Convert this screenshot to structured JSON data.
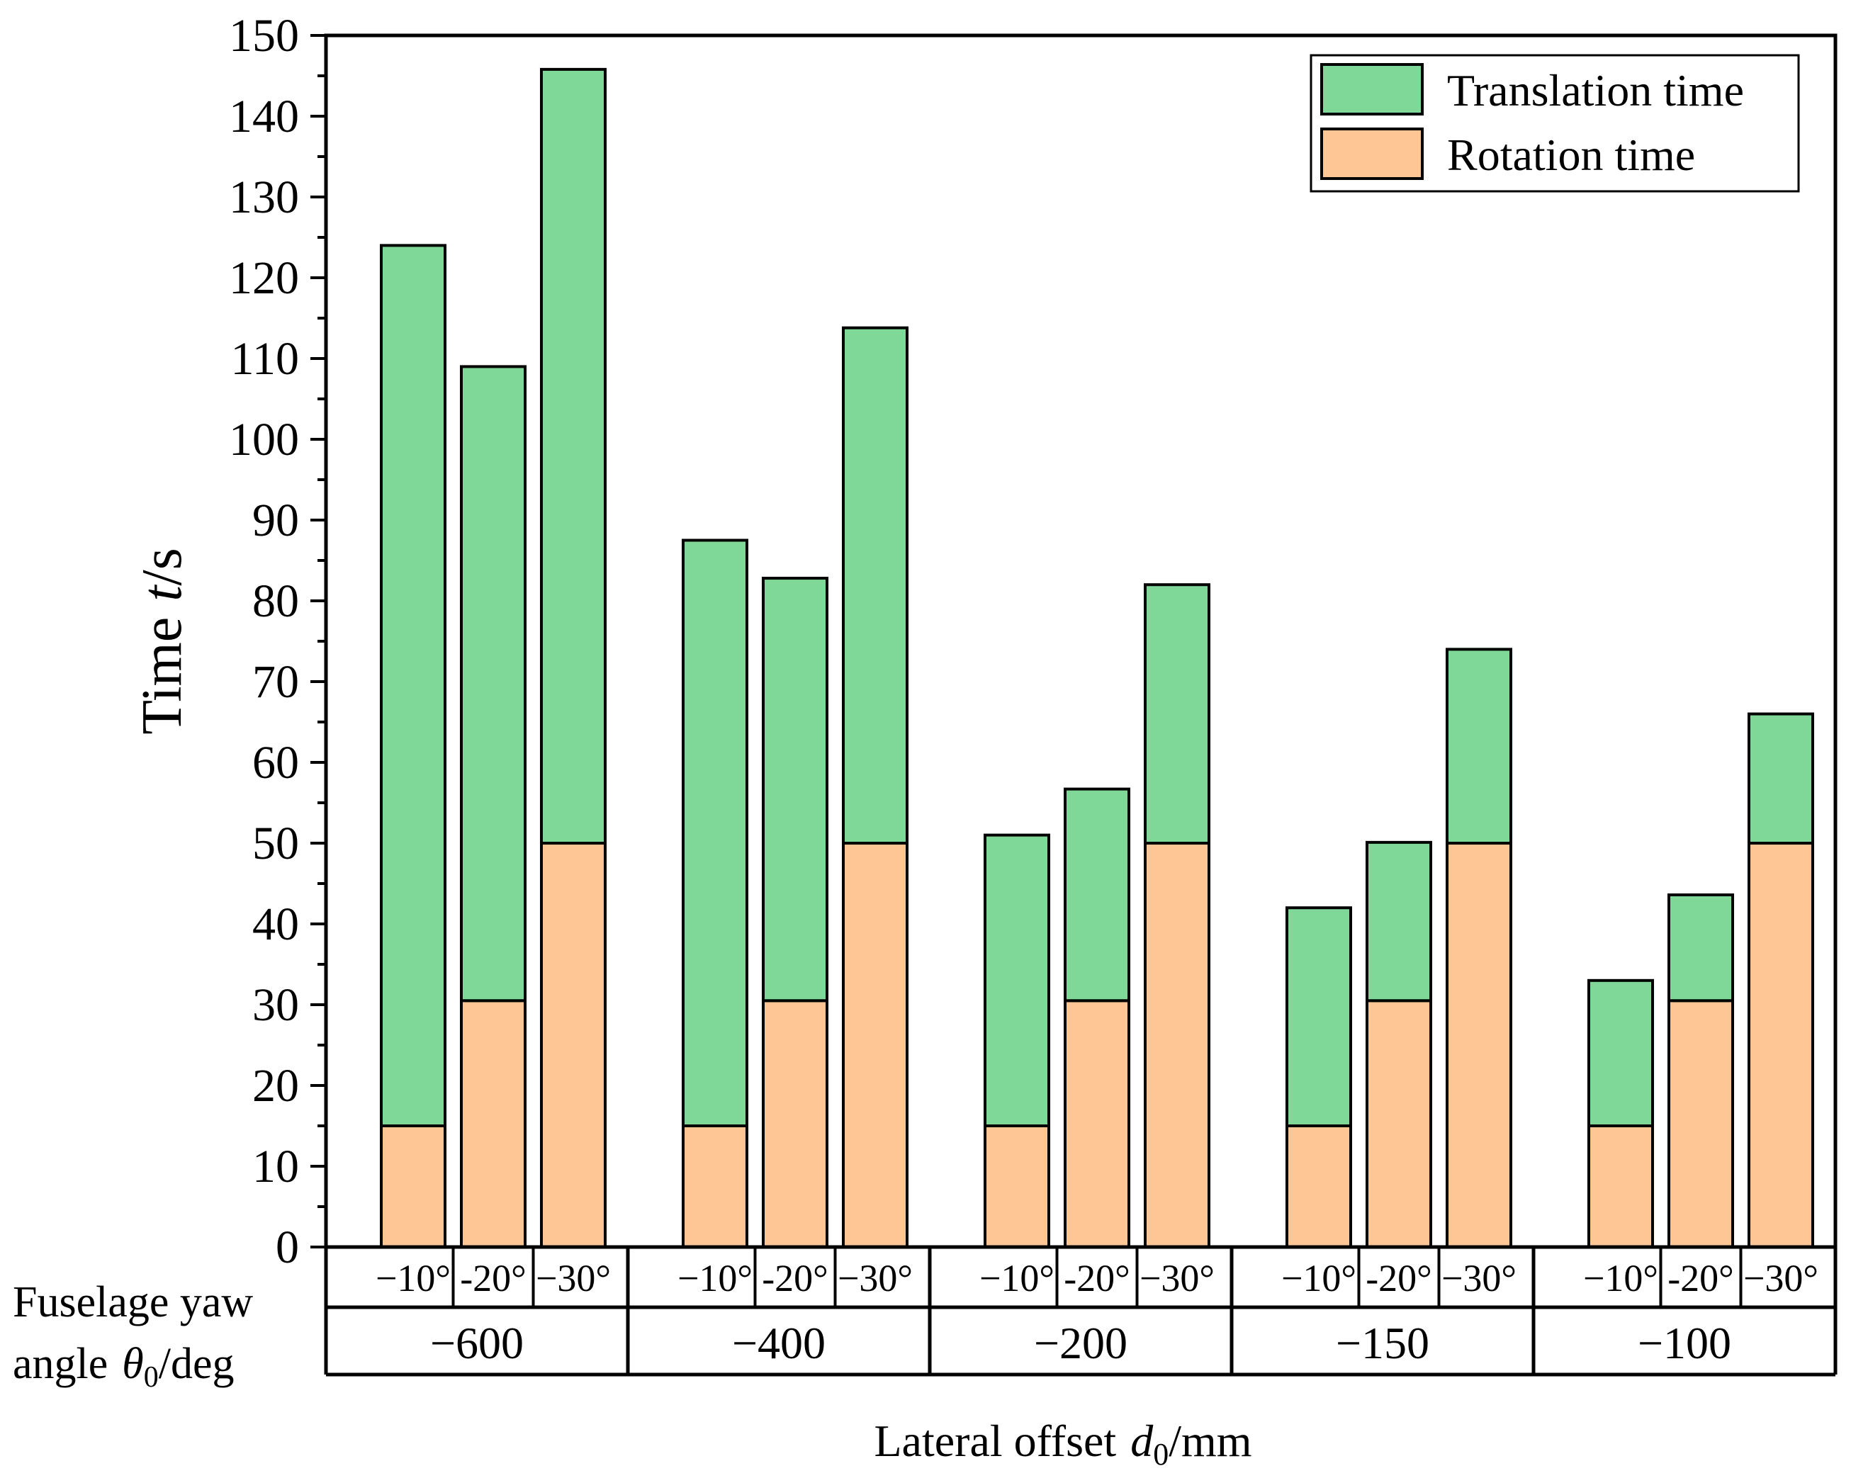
{
  "chart_data": {
    "type": "bar",
    "stacked": true,
    "ylabel_main": "Time",
    "ylabel_var": "t",
    "ylabel_unit": "/s",
    "ylim": [
      0,
      150
    ],
    "ytick_step": 10,
    "yticks": [
      "0",
      "10",
      "20",
      "30",
      "40",
      "50",
      "60",
      "70",
      "80",
      "90",
      "100",
      "110",
      "120",
      "130",
      "140",
      "150"
    ],
    "row_label_line1": "Fuselage yaw",
    "row_label_line2_pre": "angle",
    "row_label_var": "θ",
    "row_label_sub": "0",
    "row_label_unit": "/deg",
    "xlabel_pre": "Lateral offset",
    "xlabel_var": "d",
    "xlabel_sub": "0",
    "xlabel_unit": "/mm",
    "groups": [
      {
        "offset": "−600",
        "angles": [
          "−10°",
          "-20°",
          "−30°"
        ],
        "rotation": [
          15,
          30.5,
          50
        ],
        "translation": [
          109,
          78.5,
          95.8
        ]
      },
      {
        "offset": "−400",
        "angles": [
          "−10°",
          "-20°",
          "−30°"
        ],
        "rotation": [
          15,
          30.5,
          50
        ],
        "translation": [
          72.5,
          52.3,
          63.8
        ]
      },
      {
        "offset": "−200",
        "angles": [
          "−10°",
          "-20°",
          "−30°"
        ],
        "rotation": [
          15,
          30.5,
          50
        ],
        "translation": [
          36,
          26.2,
          32
        ]
      },
      {
        "offset": "−150",
        "angles": [
          "−10°",
          "-20°",
          "−30°"
        ],
        "rotation": [
          15,
          30.5,
          50
        ],
        "translation": [
          27,
          19.6,
          24
        ]
      },
      {
        "offset": "−100",
        "angles": [
          "−10°",
          "-20°",
          "−30°"
        ],
        "rotation": [
          15,
          30.5,
          50
        ],
        "translation": [
          18,
          13.1,
          16
        ]
      }
    ],
    "series": [
      {
        "name": "Translation time",
        "color": "#80d898"
      },
      {
        "name": "Rotation time",
        "color": "#fec694"
      }
    ],
    "legend_position": "top-right"
  }
}
